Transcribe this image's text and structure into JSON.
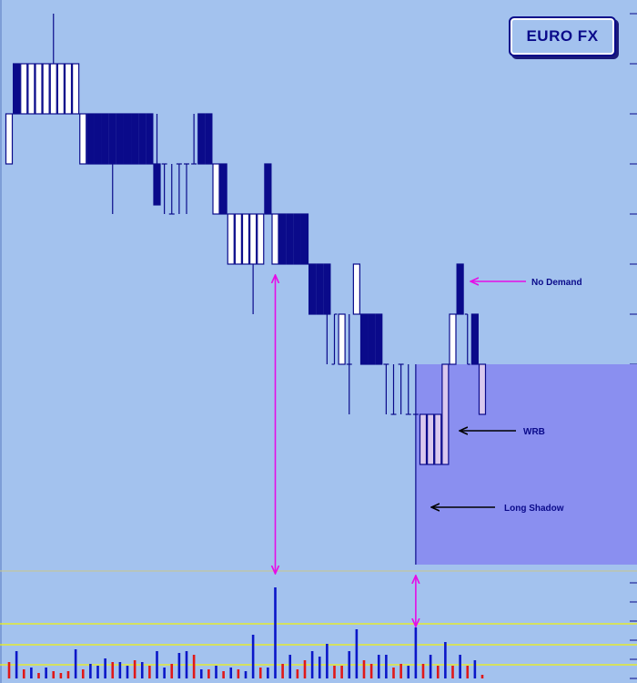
{
  "chart_data": {
    "type": "bar",
    "chart_style": "price bars (open/close bodies with high/low lines) with volume histogram",
    "title": "EURO FX",
    "colors": {
      "background": "#a3c2ee",
      "up_bar": "#ffffff",
      "down_bar": "#0a0a8a",
      "highlight_bar": "#d9c8ee",
      "bar_outline": "#0a0a8a",
      "zone": "#8a8ff0",
      "annotation_magenta": "#e60ce6",
      "annotation_black": "#000000",
      "volume_up": "#0a16c8",
      "volume_down": "#e01818",
      "volume_line": "#f2f20a"
    },
    "price_ylim": [
      0,
      620
    ],
    "volume_ylim": [
      0,
      100
    ],
    "price_bars": [
      {
        "i": 0,
        "h": 125,
        "l": 180,
        "o": 180,
        "c": 125,
        "type": "up"
      },
      {
        "i": 1,
        "h": 70,
        "l": 125,
        "o": 125,
        "c": 70,
        "type": "down"
      },
      {
        "i": 2,
        "h": 70,
        "l": 125,
        "o": 125,
        "c": 70,
        "type": "up"
      },
      {
        "i": 3,
        "h": 70,
        "l": 125,
        "o": 125,
        "c": 70,
        "type": "up"
      },
      {
        "i": 4,
        "h": 70,
        "l": 125,
        "o": 125,
        "c": 70,
        "type": "up"
      },
      {
        "i": 5,
        "h": 70,
        "l": 125,
        "o": 125,
        "c": 70,
        "type": "up"
      },
      {
        "i": 6,
        "h": 15,
        "l": 125,
        "o": 125,
        "c": 70,
        "type": "up"
      },
      {
        "i": 7,
        "h": 70,
        "l": 125,
        "o": 125,
        "c": 70,
        "type": "up"
      },
      {
        "i": 8,
        "h": 70,
        "l": 125,
        "o": 125,
        "c": 70,
        "type": "up"
      },
      {
        "i": 9,
        "h": 70,
        "l": 125,
        "o": 125,
        "c": 70,
        "type": "up"
      },
      {
        "i": 10,
        "h": 125,
        "l": 180,
        "o": 125,
        "c": 180,
        "type": "up"
      },
      {
        "i": 11,
        "h": 125,
        "l": 180,
        "o": 125,
        "c": 180,
        "type": "down"
      },
      {
        "i": 12,
        "h": 125,
        "l": 180,
        "o": 125,
        "c": 180,
        "type": "down"
      },
      {
        "i": 13,
        "h": 125,
        "l": 180,
        "o": 125,
        "c": 180,
        "type": "down"
      },
      {
        "i": 14,
        "h": 125,
        "l": 235,
        "o": 125,
        "c": 180,
        "type": "down"
      },
      {
        "i": 15,
        "h": 125,
        "l": 180,
        "o": 125,
        "c": 180,
        "type": "down"
      },
      {
        "i": 16,
        "h": 125,
        "l": 180,
        "o": 125,
        "c": 180,
        "type": "down"
      },
      {
        "i": 17,
        "h": 125,
        "l": 180,
        "o": 125,
        "c": 180,
        "type": "down"
      },
      {
        "i": 18,
        "h": 125,
        "l": 180,
        "o": 125,
        "c": 180,
        "type": "down"
      },
      {
        "i": 19,
        "h": 125,
        "l": 180,
        "o": 125,
        "c": 180,
        "type": "down"
      },
      {
        "i": 20,
        "h": 125,
        "l": 225,
        "o": 180,
        "c": 225,
        "type": "down"
      },
      {
        "i": 21,
        "h": 180,
        "l": 235,
        "o": 180,
        "c": 180,
        "type": "tick"
      },
      {
        "i": 22,
        "h": 180,
        "l": 235,
        "o": 235,
        "c": 235,
        "type": "tick"
      },
      {
        "i": 23,
        "h": 180,
        "l": 235,
        "o": 180,
        "c": 180,
        "type": "tick"
      },
      {
        "i": 24,
        "h": 180,
        "l": 235,
        "o": 180,
        "c": 180,
        "type": "tick"
      },
      {
        "i": 25,
        "h": 125,
        "l": 180,
        "o": 180,
        "c": 180,
        "type": "tick"
      },
      {
        "i": 26,
        "h": 125,
        "l": 180,
        "o": 125,
        "c": 180,
        "type": "down"
      },
      {
        "i": 27,
        "h": 125,
        "l": 180,
        "o": 125,
        "c": 180,
        "type": "down"
      },
      {
        "i": 28,
        "h": 180,
        "l": 235,
        "o": 235,
        "c": 180,
        "type": "up"
      },
      {
        "i": 29,
        "h": 180,
        "l": 235,
        "o": 180,
        "c": 235,
        "type": "down"
      },
      {
        "i": 30,
        "h": 235,
        "l": 290,
        "o": 235,
        "c": 290,
        "type": "up"
      },
      {
        "i": 31,
        "h": 235,
        "l": 290,
        "o": 235,
        "c": 290,
        "type": "up"
      },
      {
        "i": 32,
        "h": 235,
        "l": 290,
        "o": 235,
        "c": 290,
        "type": "up"
      },
      {
        "i": 33,
        "h": 235,
        "l": 345,
        "o": 235,
        "c": 290,
        "type": "up"
      },
      {
        "i": 34,
        "h": 235,
        "l": 290,
        "o": 235,
        "c": 290,
        "type": "up"
      },
      {
        "i": 35,
        "h": 180,
        "l": 235,
        "o": 180,
        "c": 235,
        "type": "down"
      },
      {
        "i": 36,
        "h": 235,
        "l": 290,
        "o": 235,
        "c": 290,
        "type": "up"
      },
      {
        "i": 37,
        "h": 235,
        "l": 290,
        "o": 235,
        "c": 290,
        "type": "down"
      },
      {
        "i": 38,
        "h": 235,
        "l": 290,
        "o": 235,
        "c": 290,
        "type": "down"
      },
      {
        "i": 39,
        "h": 235,
        "l": 290,
        "o": 235,
        "c": 290,
        "type": "down"
      },
      {
        "i": 40,
        "h": 235,
        "l": 290,
        "o": 235,
        "c": 290,
        "type": "down"
      },
      {
        "i": 41,
        "h": 290,
        "l": 345,
        "o": 290,
        "c": 345,
        "type": "down"
      },
      {
        "i": 42,
        "h": 290,
        "l": 345,
        "o": 290,
        "c": 345,
        "type": "down"
      },
      {
        "i": 43,
        "h": 290,
        "l": 400,
        "o": 290,
        "c": 345,
        "type": "down"
      },
      {
        "i": 44,
        "h": 345,
        "l": 400,
        "o": 400,
        "c": 345,
        "type": "tick"
      },
      {
        "i": 45,
        "h": 345,
        "l": 400,
        "o": 400,
        "c": 345,
        "type": "up"
      },
      {
        "i": 46,
        "h": 345,
        "l": 455,
        "o": 400,
        "c": 400,
        "type": "tick"
      },
      {
        "i": 47,
        "h": 290,
        "l": 345,
        "o": 345,
        "c": 290,
        "type": "up"
      },
      {
        "i": 48,
        "h": 345,
        "l": 400,
        "o": 345,
        "c": 400,
        "type": "down"
      },
      {
        "i": 49,
        "h": 345,
        "l": 400,
        "o": 345,
        "c": 400,
        "type": "down"
      },
      {
        "i": 50,
        "h": 345,
        "l": 400,
        "o": 345,
        "c": 400,
        "type": "down"
      },
      {
        "i": 51,
        "h": 400,
        "l": 455,
        "o": 400,
        "c": 400,
        "type": "tick"
      },
      {
        "i": 52,
        "h": 400,
        "l": 455,
        "o": 455,
        "c": 455,
        "type": "tick"
      },
      {
        "i": 53,
        "h": 400,
        "l": 455,
        "o": 400,
        "c": 400,
        "type": "tick"
      },
      {
        "i": 54,
        "h": 400,
        "l": 455,
        "o": 455,
        "c": 455,
        "type": "tick"
      },
      {
        "i": 55,
        "h": 400,
        "l": 620,
        "o": 455,
        "c": 455,
        "type": "tick"
      },
      {
        "i": 56,
        "h": 455,
        "l": 510,
        "o": 455,
        "c": 510,
        "type": "highlight"
      },
      {
        "i": 57,
        "h": 455,
        "l": 510,
        "o": 455,
        "c": 510,
        "type": "highlight"
      },
      {
        "i": 58,
        "h": 455,
        "l": 510,
        "o": 455,
        "c": 510,
        "type": "highlight"
      },
      {
        "i": 59,
        "h": 400,
        "l": 510,
        "o": 510,
        "c": 400,
        "type": "highlight"
      },
      {
        "i": 60,
        "h": 345,
        "l": 400,
        "o": 400,
        "c": 345,
        "type": "up"
      },
      {
        "i": 61,
        "h": 290,
        "l": 345,
        "o": 290,
        "c": 345,
        "type": "down"
      },
      {
        "i": 62,
        "h": 345,
        "l": 400,
        "o": 345,
        "c": 400,
        "type": "tick"
      },
      {
        "i": 63,
        "h": 345,
        "l": 400,
        "o": 345,
        "c": 400,
        "type": "down"
      },
      {
        "i": 64,
        "h": 400,
        "l": 455,
        "o": 455,
        "c": 400,
        "type": "highlight"
      }
    ],
    "volume": [
      {
        "i": 0,
        "v": 18,
        "dir": "down"
      },
      {
        "i": 1,
        "v": 30,
        "dir": "up"
      },
      {
        "i": 2,
        "v": 10,
        "dir": "down"
      },
      {
        "i": 3,
        "v": 12,
        "dir": "up"
      },
      {
        "i": 4,
        "v": 6,
        "dir": "down"
      },
      {
        "i": 5,
        "v": 12,
        "dir": "up"
      },
      {
        "i": 6,
        "v": 8,
        "dir": "down"
      },
      {
        "i": 7,
        "v": 6,
        "dir": "down"
      },
      {
        "i": 8,
        "v": 8,
        "dir": "down"
      },
      {
        "i": 9,
        "v": 32,
        "dir": "up"
      },
      {
        "i": 10,
        "v": 10,
        "dir": "down"
      },
      {
        "i": 11,
        "v": 16,
        "dir": "up"
      },
      {
        "i": 12,
        "v": 14,
        "dir": "up"
      },
      {
        "i": 13,
        "v": 22,
        "dir": "up"
      },
      {
        "i": 14,
        "v": 18,
        "dir": "down"
      },
      {
        "i": 15,
        "v": 18,
        "dir": "up"
      },
      {
        "i": 16,
        "v": 14,
        "dir": "up"
      },
      {
        "i": 17,
        "v": 20,
        "dir": "down"
      },
      {
        "i": 18,
        "v": 18,
        "dir": "up"
      },
      {
        "i": 19,
        "v": 14,
        "dir": "down"
      },
      {
        "i": 20,
        "v": 30,
        "dir": "up"
      },
      {
        "i": 21,
        "v": 12,
        "dir": "up"
      },
      {
        "i": 22,
        "v": 16,
        "dir": "down"
      },
      {
        "i": 23,
        "v": 28,
        "dir": "up"
      },
      {
        "i": 24,
        "v": 30,
        "dir": "up"
      },
      {
        "i": 25,
        "v": 26,
        "dir": "down"
      },
      {
        "i": 26,
        "v": 10,
        "dir": "up"
      },
      {
        "i": 27,
        "v": 10,
        "dir": "down"
      },
      {
        "i": 28,
        "v": 14,
        "dir": "up"
      },
      {
        "i": 29,
        "v": 8,
        "dir": "down"
      },
      {
        "i": 30,
        "v": 12,
        "dir": "up"
      },
      {
        "i": 31,
        "v": 10,
        "dir": "down"
      },
      {
        "i": 32,
        "v": 8,
        "dir": "up"
      },
      {
        "i": 33,
        "v": 48,
        "dir": "up"
      },
      {
        "i": 34,
        "v": 12,
        "dir": "down"
      },
      {
        "i": 35,
        "v": 12,
        "dir": "up"
      },
      {
        "i": 36,
        "v": 100,
        "dir": "up"
      },
      {
        "i": 37,
        "v": 16,
        "dir": "down"
      },
      {
        "i": 38,
        "v": 26,
        "dir": "up"
      },
      {
        "i": 39,
        "v": 10,
        "dir": "down"
      },
      {
        "i": 40,
        "v": 20,
        "dir": "down"
      },
      {
        "i": 41,
        "v": 30,
        "dir": "up"
      },
      {
        "i": 42,
        "v": 24,
        "dir": "up"
      },
      {
        "i": 43,
        "v": 38,
        "dir": "up"
      },
      {
        "i": 44,
        "v": 14,
        "dir": "down"
      },
      {
        "i": 45,
        "v": 14,
        "dir": "down"
      },
      {
        "i": 46,
        "v": 30,
        "dir": "up"
      },
      {
        "i": 47,
        "v": 54,
        "dir": "up"
      },
      {
        "i": 48,
        "v": 20,
        "dir": "down"
      },
      {
        "i": 49,
        "v": 16,
        "dir": "down"
      },
      {
        "i": 50,
        "v": 26,
        "dir": "up"
      },
      {
        "i": 51,
        "v": 26,
        "dir": "up"
      },
      {
        "i": 52,
        "v": 12,
        "dir": "down"
      },
      {
        "i": 53,
        "v": 16,
        "dir": "down"
      },
      {
        "i": 54,
        "v": 14,
        "dir": "up"
      },
      {
        "i": 55,
        "v": 56,
        "dir": "up"
      },
      {
        "i": 56,
        "v": 16,
        "dir": "down"
      },
      {
        "i": 57,
        "v": 26,
        "dir": "up"
      },
      {
        "i": 58,
        "v": 14,
        "dir": "down"
      },
      {
        "i": 59,
        "v": 40,
        "dir": "up"
      },
      {
        "i": 60,
        "v": 14,
        "dir": "down"
      },
      {
        "i": 61,
        "v": 26,
        "dir": "up"
      },
      {
        "i": 62,
        "v": 14,
        "dir": "down"
      },
      {
        "i": 63,
        "v": 20,
        "dir": "up"
      },
      {
        "i": 64,
        "v": 4,
        "dir": "down"
      }
    ],
    "annotations": [
      {
        "label": "No Demand",
        "color": "magenta"
      },
      {
        "label": "WRB",
        "color": "black"
      },
      {
        "label": "Long Shadow",
        "color": "black"
      }
    ],
    "grid": false,
    "legend": "none"
  }
}
